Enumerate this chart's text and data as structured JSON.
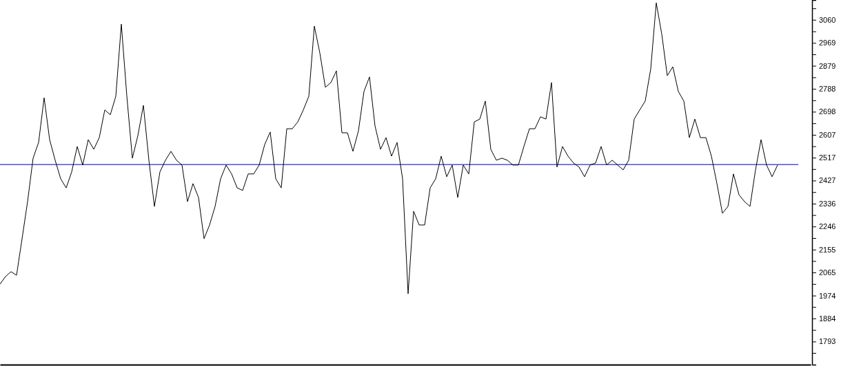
{
  "chart_data": {
    "type": "line",
    "categories": [
      null,
      null,
      null,
      null,
      null,
      null,
      null,
      null,
      null,
      null,
      null,
      null,
      null,
      null,
      null,
      null,
      null,
      null,
      null,
      null,
      null,
      null,
      null,
      null,
      null,
      null,
      null,
      null,
      null,
      null,
      null,
      null,
      null,
      null,
      null,
      null,
      null,
      null,
      null,
      null,
      null,
      null,
      null,
      null,
      null,
      null,
      null,
      null,
      null,
      null,
      null,
      null,
      null,
      null,
      null,
      null,
      null,
      null,
      null,
      null,
      null,
      null,
      null,
      null,
      null,
      null,
      null,
      null,
      null,
      null,
      null,
      null,
      null,
      null,
      null,
      null,
      null,
      null,
      null,
      null,
      null,
      null,
      null,
      null,
      null,
      null,
      null,
      null,
      null,
      null,
      null,
      null,
      null,
      null,
      null,
      null,
      null,
      null,
      null,
      null,
      null,
      null,
      null,
      null,
      null,
      null,
      null,
      null,
      null,
      null,
      null,
      null,
      null,
      null,
      null,
      null,
      null,
      null,
      null,
      null,
      null,
      null,
      null,
      null,
      null,
      null,
      null,
      null,
      null,
      null,
      null,
      null,
      null,
      null,
      null,
      null,
      null,
      null,
      null,
      null,
      null,
      null,
      null,
      null,
      null,
      null,
      null,
      null
    ],
    "series": [
      {
        "color": "#000000",
        "values": [
          2019,
          2049,
          2068,
          2054,
          2198,
          2344,
          2515,
          2577,
          2753,
          2588,
          2507,
          2434,
          2398,
          2461,
          2561,
          2488,
          2588,
          2550,
          2596,
          2705,
          2686,
          2759,
          3043,
          2759,
          2515,
          2604,
          2723,
          2507,
          2325,
          2461,
          2507,
          2542,
          2507,
          2488,
          2344,
          2415,
          2360,
          2198,
          2252,
          2325,
          2434,
          2488,
          2453,
          2398,
          2388,
          2453,
          2453,
          2488,
          2569,
          2618,
          2434,
          2398,
          2631,
          2631,
          2658,
          2705,
          2759,
          3035,
          2929,
          2794,
          2813,
          2859,
          2615,
          2615,
          2542,
          2623,
          2778,
          2835,
          2642,
          2550,
          2596,
          2523,
          2577,
          2434,
          1981,
          2306,
          2252,
          2252,
          2398,
          2434,
          2523,
          2442,
          2488,
          2360,
          2488,
          2453,
          2658,
          2669,
          2740,
          2550,
          2507,
          2515,
          2507,
          2488,
          2488,
          2561,
          2631,
          2631,
          2678,
          2669,
          2813,
          2480,
          2561,
          2523,
          2496,
          2480,
          2442,
          2488,
          2496,
          2561,
          2488,
          2507,
          2488,
          2469,
          2507,
          2669,
          2705,
          2740,
          2867,
          3127,
          3003,
          2840,
          2875,
          2778,
          2740,
          2596,
          2669,
          2596,
          2596,
          2523,
          2415,
          2298,
          2325,
          2453,
          2371,
          2344,
          2325,
          2469,
          2588,
          2488,
          2442,
          2488,
          null,
          null,
          null,
          null,
          null,
          null
        ]
      }
    ],
    "ylim": [
      1702,
      3138
    ],
    "yticks": [
      {
        "value": 3105,
        "label": null
      },
      3060,
      {
        "value": 3014.5,
        "label": null
      },
      2969,
      {
        "value": 2924,
        "label": null
      },
      2879,
      {
        "value": 2833.5,
        "label": null
      },
      2788,
      {
        "value": 2743,
        "label": null
      },
      2698,
      {
        "value": 2652.5,
        "label": null
      },
      2607,
      {
        "value": 2562,
        "label": null
      },
      2517,
      {
        "value": 2472,
        "label": null
      },
      2427,
      {
        "value": 2381.5,
        "label": null
      },
      2336,
      {
        "value": 2291,
        "label": null
      },
      2246,
      {
        "value": 2200.5,
        "label": null
      },
      2155,
      {
        "value": 2110,
        "label": null
      },
      2065,
      {
        "value": 2019.5,
        "label": null
      },
      1974,
      {
        "value": 1929,
        "label": null
      },
      1884,
      {
        "value": 1838.5,
        "label": null
      },
      1793,
      {
        "value": 1748,
        "label": null
      }
    ],
    "ref_lines": [
      {
        "axis": "y",
        "value": 2490,
        "color": "#000080"
      }
    ],
    "tick_labels": "y",
    "line_style": "solid",
    "marker": "none"
  }
}
